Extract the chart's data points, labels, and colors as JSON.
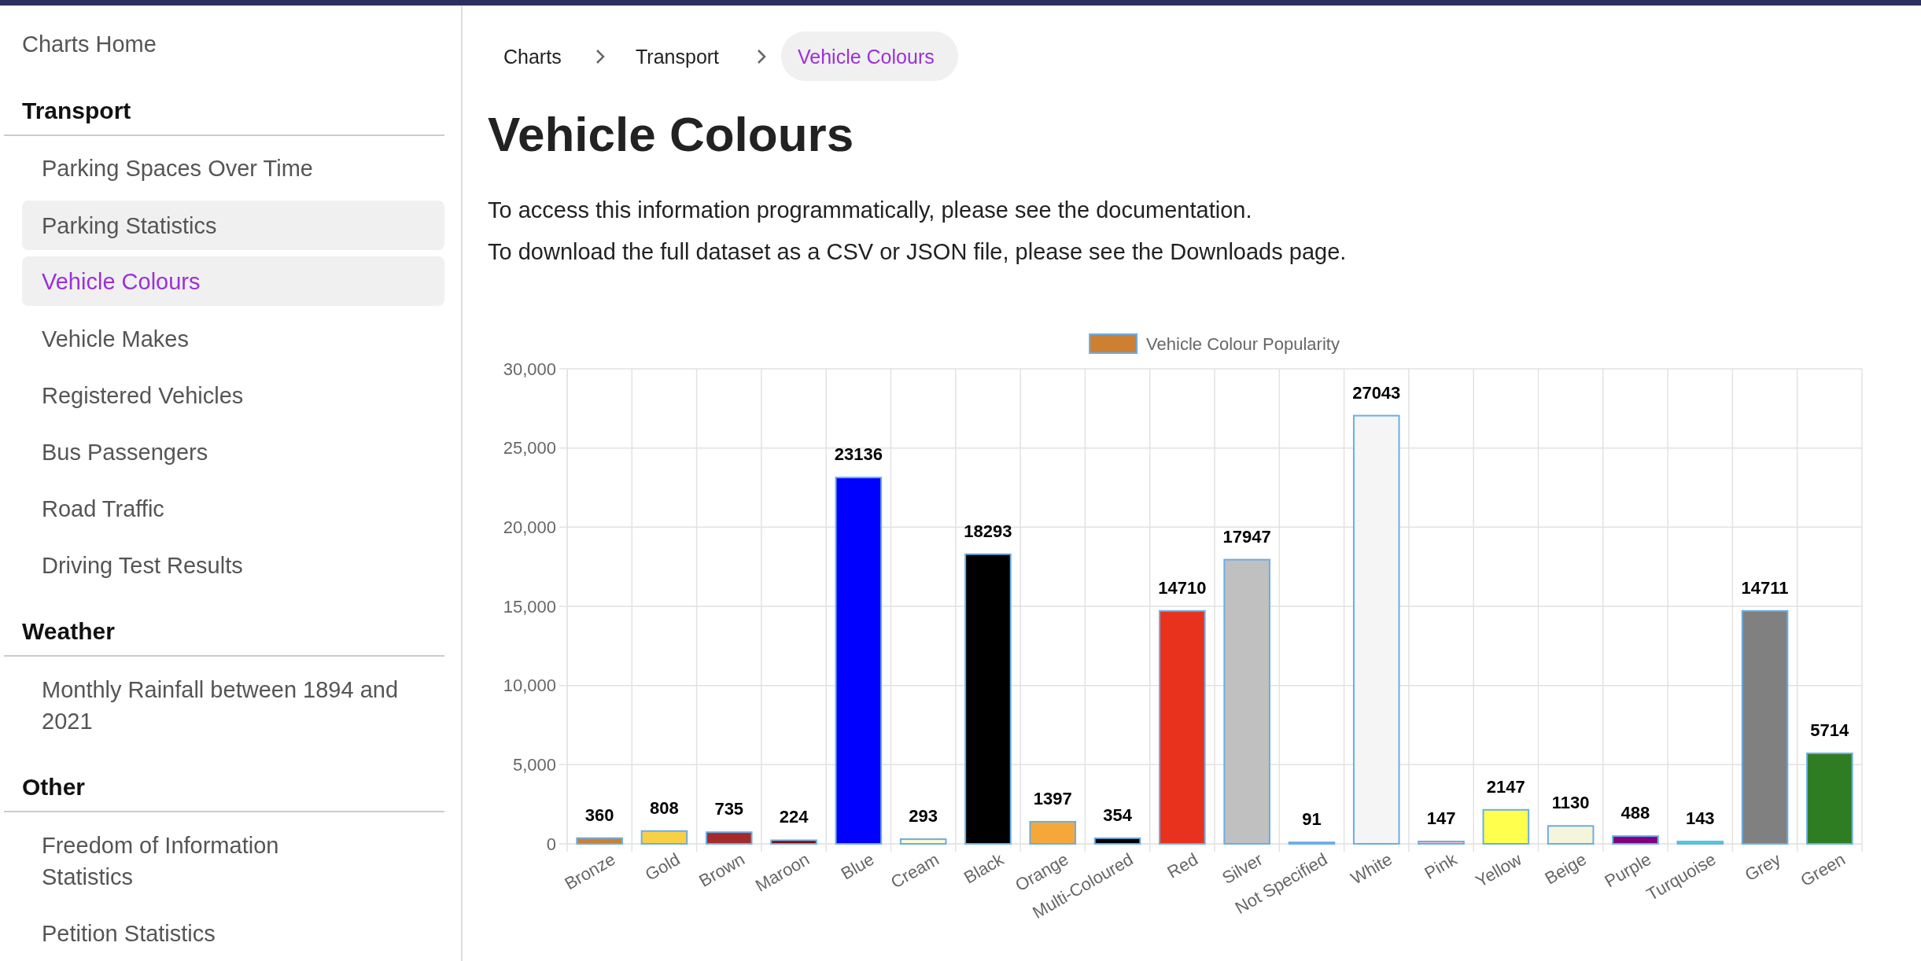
{
  "chart_data": {
    "type": "bar",
    "title": "Vehicle Colours",
    "categories": [
      "Bronze",
      "Gold",
      "Brown",
      "Maroon",
      "Blue",
      "Cream",
      "Black",
      "Orange",
      "Multi-Coloured",
      "Red",
      "Silver",
      "Not Specified",
      "White",
      "Pink",
      "Yellow",
      "Beige",
      "Purple",
      "Turquoise",
      "Grey",
      "Green"
    ],
    "series": [
      {
        "name": "Vehicle Colour Popularity",
        "color": "#cd7f32",
        "values": [
          360,
          808,
          735,
          224,
          23136,
          293,
          18293,
          1397,
          354,
          14710,
          17947,
          91,
          27043,
          147,
          2147,
          1130,
          488,
          143,
          14711,
          5714
        ],
        "colors": [
          "#cd7f32",
          "#f7d046",
          "#a52a2a",
          "#800000",
          "#0000ff",
          "#fffdd0",
          "#000000",
          "#f5a83a",
          "#000000",
          "#e8321e",
          "#c0c0c0",
          "#ffffff",
          "#f5f5f5",
          "#ffc0cb",
          "#ffff4d",
          "#f5f5dc",
          "#800080",
          "#40e0d0",
          "#808080",
          "#2e7d22"
        ]
      }
    ],
    "ylim": [
      0,
      30000
    ],
    "yticks": [
      0,
      {
        "value": 5000,
        "label": "5,000"
      },
      {
        "value": 10000,
        "label": "10,000"
      },
      {
        "value": 15000,
        "label": "15,000"
      },
      {
        "value": 20000,
        "label": "20,000"
      },
      {
        "value": 25000,
        "label": "25,000"
      },
      {
        "value": 30000,
        "label": "30,000"
      }
    ],
    "grid": true,
    "legend": "top",
    "data_labels": true,
    "annotations": [
      "Charts Home",
      "Transport",
      "Parking Spaces Over Time",
      "Parking Statistics",
      "Vehicle Colours",
      "Vehicle Makes",
      "Registered Vehicles",
      "Bus Passengers",
      "Road Traffic",
      "Driving Test Results",
      "Weather",
      "Monthly Rainfall between 1894 and 2021",
      "Other",
      "Freedom of Information Statistics",
      "Petition Statistics",
      "Charts",
      "Transport",
      "Vehicle Colours",
      "To access this information programmatically, please see the documentation.",
      "To download the full dataset as a CSV or JSON file, please see the Downloads page."
    ]
  }
}
